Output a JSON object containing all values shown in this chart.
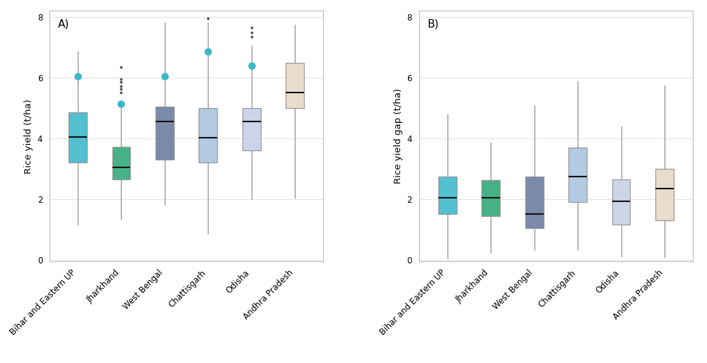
{
  "categories": [
    "Bihar and Eastern UP",
    "Jharkhand",
    "West Bengal",
    "Chattisgarh",
    "Odisha",
    "Andhra Pradesh"
  ],
  "colors": [
    "#3ab8ca",
    "#2ca878",
    "#6a7a9e",
    "#a8c4df",
    "#c5cfe5",
    "#e8d8c5"
  ],
  "panel_A": {
    "title": "A)",
    "ylabel": "Rice yield (t/ha)",
    "ylim": [
      -0.05,
      8.2
    ],
    "yticks": [
      0,
      2,
      4,
      6,
      8
    ],
    "boxes": [
      {
        "q1": 3.2,
        "median": 4.05,
        "q3": 4.85,
        "whislo": 1.15,
        "whishi": 6.85,
        "large_fliers": [
          6.05
        ],
        "small_fliers": []
      },
      {
        "q1": 2.65,
        "median": 3.05,
        "q3": 3.72,
        "whislo": 1.35,
        "whishi": 5.25,
        "large_fliers": [
          5.15
        ],
        "small_fliers": [
          6.35,
          5.95,
          5.85,
          5.72,
          5.62,
          5.52
        ]
      },
      {
        "q1": 3.3,
        "median": 4.55,
        "q3": 5.05,
        "whislo": 1.82,
        "whishi": 7.82,
        "large_fliers": [
          6.05
        ],
        "small_fliers": []
      },
      {
        "q1": 3.2,
        "median": 4.02,
        "q3": 5.0,
        "whislo": 0.85,
        "whishi": 7.82,
        "large_fliers": [
          6.85
        ],
        "small_fliers": [
          7.95
        ]
      },
      {
        "q1": 3.6,
        "median": 4.55,
        "q3": 5.0,
        "whislo": 2.0,
        "whishi": 7.05,
        "large_fliers": [
          6.4
        ],
        "small_fliers": [
          7.65,
          7.5,
          7.35
        ]
      },
      {
        "q1": 5.0,
        "median": 5.5,
        "q3": 6.5,
        "whislo": 2.05,
        "whishi": 7.75,
        "large_fliers": [],
        "small_fliers": []
      }
    ]
  },
  "panel_B": {
    "title": "B)",
    "ylabel": "Rice yield gap (t/ha)",
    "ylim": [
      -0.05,
      8.2
    ],
    "yticks": [
      0,
      2,
      4,
      6,
      8
    ],
    "boxes": [
      {
        "q1": 1.5,
        "median": 2.05,
        "q3": 2.75,
        "whislo": 0.05,
        "whishi": 4.8,
        "large_fliers": [],
        "small_fliers": []
      },
      {
        "q1": 1.45,
        "median": 2.05,
        "q3": 2.62,
        "whislo": 0.22,
        "whishi": 3.85,
        "large_fliers": [],
        "small_fliers": []
      },
      {
        "q1": 1.05,
        "median": 1.52,
        "q3": 2.75,
        "whislo": 0.32,
        "whishi": 5.1,
        "large_fliers": [],
        "small_fliers": []
      },
      {
        "q1": 1.9,
        "median": 2.75,
        "q3": 3.7,
        "whislo": 0.32,
        "whishi": 5.88,
        "large_fliers": [],
        "small_fliers": []
      },
      {
        "q1": 1.15,
        "median": 1.92,
        "q3": 2.65,
        "whislo": 0.12,
        "whishi": 4.4,
        "large_fliers": [],
        "small_fliers": []
      },
      {
        "q1": 1.3,
        "median": 2.35,
        "q3": 3.0,
        "whislo": 0.08,
        "whishi": 5.75,
        "large_fliers": [],
        "small_fliers": []
      }
    ]
  },
  "box_width": 0.42,
  "flier_color": "#3ab8ca",
  "small_flier_color": "#555555",
  "median_color": "#111111",
  "whisker_color": "#909090",
  "box_edge_color": "#909090",
  "background_color": "#ffffff",
  "grid_color": "#dddddd",
  "label_fontsize": 9.5,
  "tick_fontsize": 8.5,
  "title_fontsize": 11
}
